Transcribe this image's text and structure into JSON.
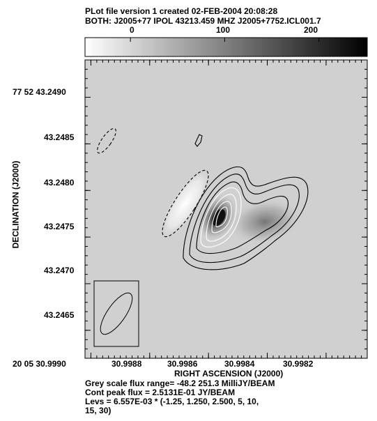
{
  "header": {
    "line1": "PLot file version 1  created 02-FEB-2004 20:08:28",
    "line2": "BOTH: J2005+77  IPOL  43213.459 MHZ  J2005+7752.ICL001.7"
  },
  "colorbar": {
    "ticks": [
      "0",
      "100",
      "200"
    ],
    "tick_values": [
      0,
      100,
      200
    ],
    "range": [
      -48.2,
      251.3
    ]
  },
  "footer": {
    "line1": "Grey scale flux range= -48.2 251.3 MilliJY/BEAM",
    "line2": "Cont peak flux =  2.5131E-01 JY/BEAM",
    "line3": "Levs = 6.557E-03 * (-1.25, 1.250, 2.500, 5, 10,",
    "line4": "15, 30)"
  },
  "chart_data": {
    "type": "heatmap",
    "title": "BOTH: J2005+77  IPOL  43213.459 MHZ  J2005+7752.ICL001.7",
    "xlabel": "RIGHT ASCENSION (J2000)",
    "ylabel": "DECLINATION (J2000)",
    "x_ticks": [
      "20 05 30.9990",
      "30.9988",
      "30.9986",
      "30.9984",
      "30.9982"
    ],
    "x_tick_values_s": [
      30.999,
      30.9988,
      30.9986,
      30.9984,
      30.9982
    ],
    "y_ticks": [
      "77 52 43.2490",
      "43.2485",
      "43.2480",
      "43.2475",
      "43.2470",
      "43.2465"
    ],
    "y_tick_values_arcsec": [
      43.249,
      43.2485,
      43.248,
      43.2475,
      43.247,
      43.2465
    ],
    "xlim_s": [
      30.99902,
      30.99806
    ],
    "ylim_arcsec": [
      43.2494,
      43.2462
    ],
    "grey_scale_range_mJy": [
      -48.2,
      251.3
    ],
    "peak_flux_Jy_per_beam": 0.25131,
    "contour_base_Jy": 0.006557,
    "contour_multipliers": [
      -1.25,
      1.25,
      2.5,
      5,
      10,
      15,
      30
    ],
    "contour_levels_sign": [
      "negative",
      "positive",
      "positive",
      "positive",
      "positive",
      "positive",
      "positive"
    ],
    "components": [
      {
        "role": "core",
        "ra_s": 30.99851,
        "dec_arcsec": 43.24757,
        "peak_mJy": 251.3
      },
      {
        "role": "jet",
        "ra_s": 30.99827,
        "dec_arcsec": 43.24762,
        "peak_mJy": 60
      },
      {
        "role": "negative",
        "ra_s": 30.99867,
        "dec_arcsec": 43.24778,
        "peak_mJy": -48.2
      },
      {
        "role": "negative",
        "ra_s": 30.99886,
        "dec_arcsec": 43.2484,
        "peak_mJy": -9
      }
    ],
    "beam": {
      "ra_s": 30.99879,
      "dec_arcsec": 43.24662,
      "position_angle_deg": 35
    }
  }
}
